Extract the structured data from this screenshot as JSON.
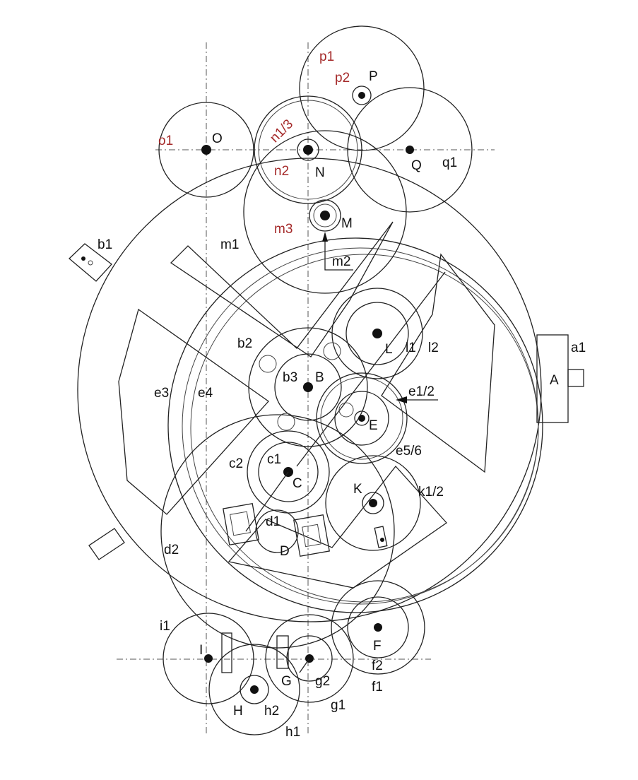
{
  "colors": {
    "ink": "#222222",
    "highlight": "#a52a2a",
    "background": "#ffffff"
  },
  "labels": {
    "p1": "p1",
    "p2": "p2",
    "P": "P",
    "o1": "o1",
    "O": "O",
    "n13": "n1/3",
    "n2": "n2",
    "N": "N",
    "Q": "Q",
    "q1": "q1",
    "m3": "m3",
    "M": "M",
    "m1": "m1",
    "m2": "m2",
    "b1": "b1",
    "b2": "b2",
    "b3": "b3",
    "B": "B",
    "L": "L",
    "l1": "l1",
    "l2": "l2",
    "a1": "a1",
    "A": "A",
    "e12": "e1/2",
    "E": "E",
    "e56": "e5/6",
    "e3": "e3",
    "e4": "e4",
    "c2": "c2",
    "c1": "c1",
    "C": "C",
    "K": "K",
    "k12": "k1/2",
    "d1": "d1",
    "D": "D",
    "d2": "d2",
    "i1": "i1",
    "I": "I",
    "F": "F",
    "f2": "f2",
    "f1": "f1",
    "G": "G",
    "g2": "g2",
    "g1": "g1",
    "H": "H",
    "h2": "h2",
    "h1": "h1"
  }
}
